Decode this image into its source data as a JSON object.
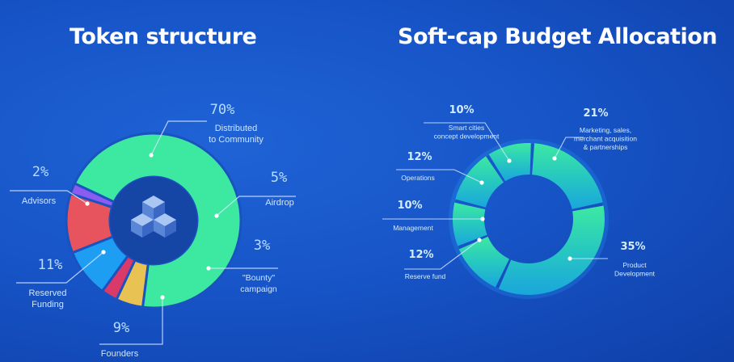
{
  "chart_data": [
    {
      "type": "pie",
      "title": "Token structure",
      "slices": [
        {
          "label": "Distributed\nto Community",
          "pct_label": "70%",
          "value": 70,
          "color": "#3de8a0"
        },
        {
          "label": "Airdrop",
          "pct_label": "5%",
          "value": 5,
          "color": "#e9c254"
        },
        {
          "label": "\"Bounty\"\ncampaign",
          "pct_label": "3%",
          "value": 3,
          "color": "#d93a6a"
        },
        {
          "label": "Founders",
          "pct_label": "9%",
          "value": 9,
          "color": "#1e9ef2"
        },
        {
          "label": "Reserved\nFunding",
          "pct_label": "11%",
          "value": 11,
          "color": "#e8545e"
        },
        {
          "label": "Advisors",
          "pct_label": "2%",
          "value": 2,
          "color": "#8a5cf2"
        }
      ]
    },
    {
      "type": "pie",
      "title": "Soft-cap Budget Allocation",
      "slices": [
        {
          "label": "Marketing, sales,\nmerchant acquisition\n& partnerships",
          "pct_label": "21%",
          "value": 21
        },
        {
          "label": "Product\nDevelopment",
          "pct_label": "35%",
          "value": 35
        },
        {
          "label": "Reserve fund",
          "pct_label": "12%",
          "value": 12
        },
        {
          "label": "Management",
          "pct_label": "10%",
          "value": 10
        },
        {
          "label": "Operations",
          "pct_label": "12%",
          "value": 12
        },
        {
          "label": "Smart cities\nconcept development",
          "pct_label": "10%",
          "value": 10
        }
      ]
    }
  ]
}
